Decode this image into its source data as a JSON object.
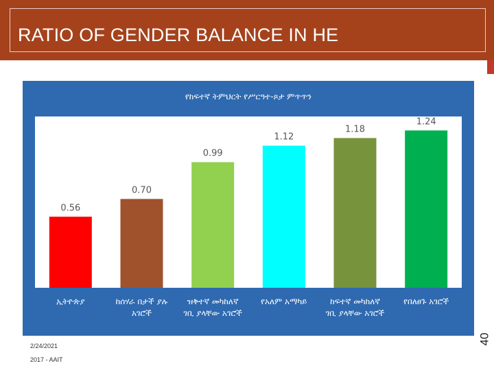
{
  "slide": {
    "title": "RATIO OF GENDER BALANCE IN HE",
    "number": "40",
    "date": "2/24/2021",
    "source": "2017 - AAIT"
  },
  "colors": {
    "title_bar": "#a5421c",
    "chart_background": "#2f6ab1",
    "plot_area": "#ffffff",
    "value_label": "#555555"
  },
  "chart_data": {
    "type": "bar",
    "title": "የከፍተኛ ትምህርት የሥርዓተ-ጾታ ምጥጥን",
    "categories": [
      "ኢትዮጵያ",
      "ከሰሃራ በታች ያሉ አገሮች",
      "ዝቅተኛ መካከለኛ ገቢ ያላቸው አገሮች",
      "የአለም አማካይ",
      "ከፍተኛ መካከለኛ ገቢ ያላቸው አገሮች",
      "የበለፀጉ አገሮች"
    ],
    "values": [
      0.56,
      0.7,
      0.99,
      1.12,
      1.18,
      1.24
    ],
    "value_labels": [
      "0.56",
      "0.70",
      "0.99",
      "1.12",
      "1.18",
      "1.24"
    ],
    "bar_colors": [
      "#ff0000",
      "#a0522d",
      "#92d050",
      "#00ffff",
      "#77933c",
      "#00b050"
    ],
    "ylim": [
      0,
      1.35
    ],
    "grid": false,
    "legend": "none"
  }
}
